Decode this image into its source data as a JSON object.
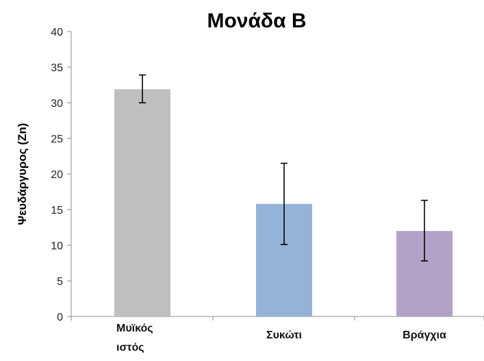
{
  "chart_data": {
    "type": "bar",
    "title": "Μονάδα Β",
    "xlabel": "",
    "ylabel": "Ψευδάργυρος (Zn)",
    "ylim": [
      0,
      40
    ],
    "yticks": [
      0,
      5,
      10,
      15,
      20,
      25,
      30,
      35,
      40
    ],
    "grid": false,
    "legend": "none",
    "categories": [
      [
        "Μυϊκός",
        "ιστός"
      ],
      [
        "Συκώτι"
      ],
      [
        "Βράγχια"
      ]
    ],
    "values": [
      31.9,
      15.8,
      12.0
    ],
    "error_low": [
      30.0,
      10.1,
      7.8
    ],
    "error_high": [
      33.9,
      21.5,
      16.3
    ],
    "colors": [
      "#bfbfbf",
      "#95b3d7",
      "#b3a2c7"
    ]
  }
}
